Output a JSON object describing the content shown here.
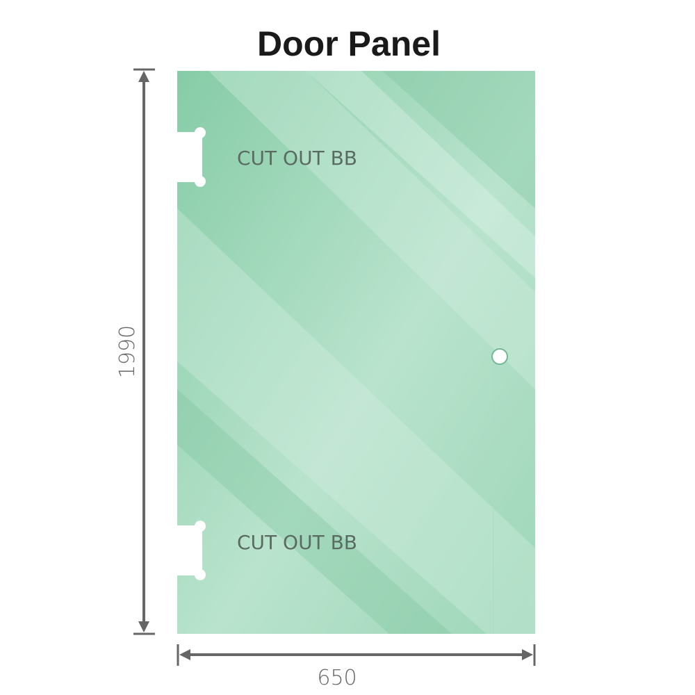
{
  "title": "Door Panel",
  "dimensions": {
    "height": "1990",
    "width": "650"
  },
  "cutouts": [
    {
      "label": "CUT OUT BB"
    },
    {
      "label": "CUT OUT BB"
    }
  ],
  "colors": {
    "glass": "#8fd0ae",
    "glass_light": "#bfe6d2",
    "dimension_line": "#666666"
  }
}
